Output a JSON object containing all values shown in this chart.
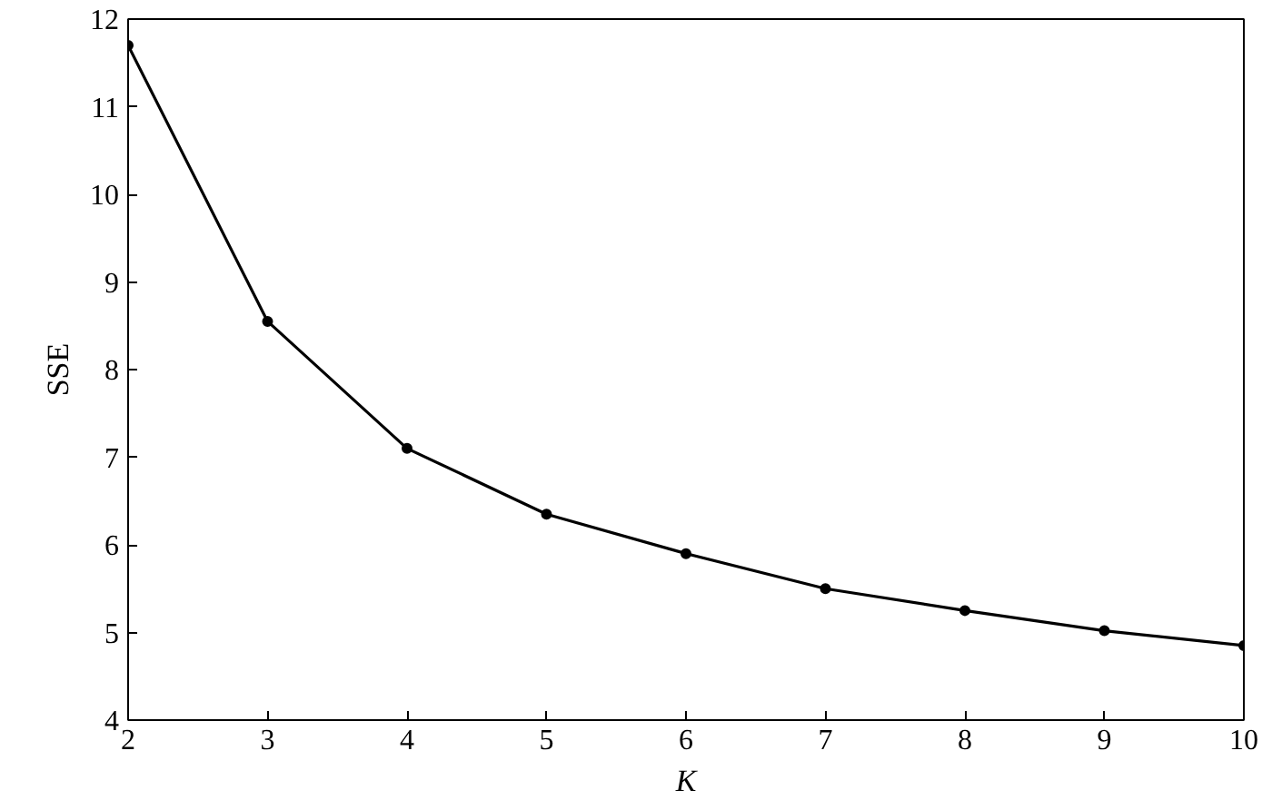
{
  "chart_data": {
    "type": "line",
    "xlabel": "K",
    "ylabel": "SSE",
    "x": [
      2,
      3,
      4,
      5,
      6,
      7,
      8,
      9,
      10
    ],
    "series": [
      {
        "color": "#000000",
        "values": [
          11.7,
          8.55,
          7.1,
          6.35,
          5.9,
          5.5,
          5.25,
          5.02,
          4.85
        ]
      }
    ],
    "xlim": [
      2,
      10
    ],
    "ylim": [
      4,
      12
    ],
    "xticks": [
      2,
      3,
      4,
      5,
      6,
      7,
      8,
      9,
      10
    ],
    "yticks": [
      4,
      5,
      6,
      7,
      8,
      9,
      10,
      11,
      12
    ],
    "marker": "circle",
    "line_style": "solid",
    "grid": false
  }
}
